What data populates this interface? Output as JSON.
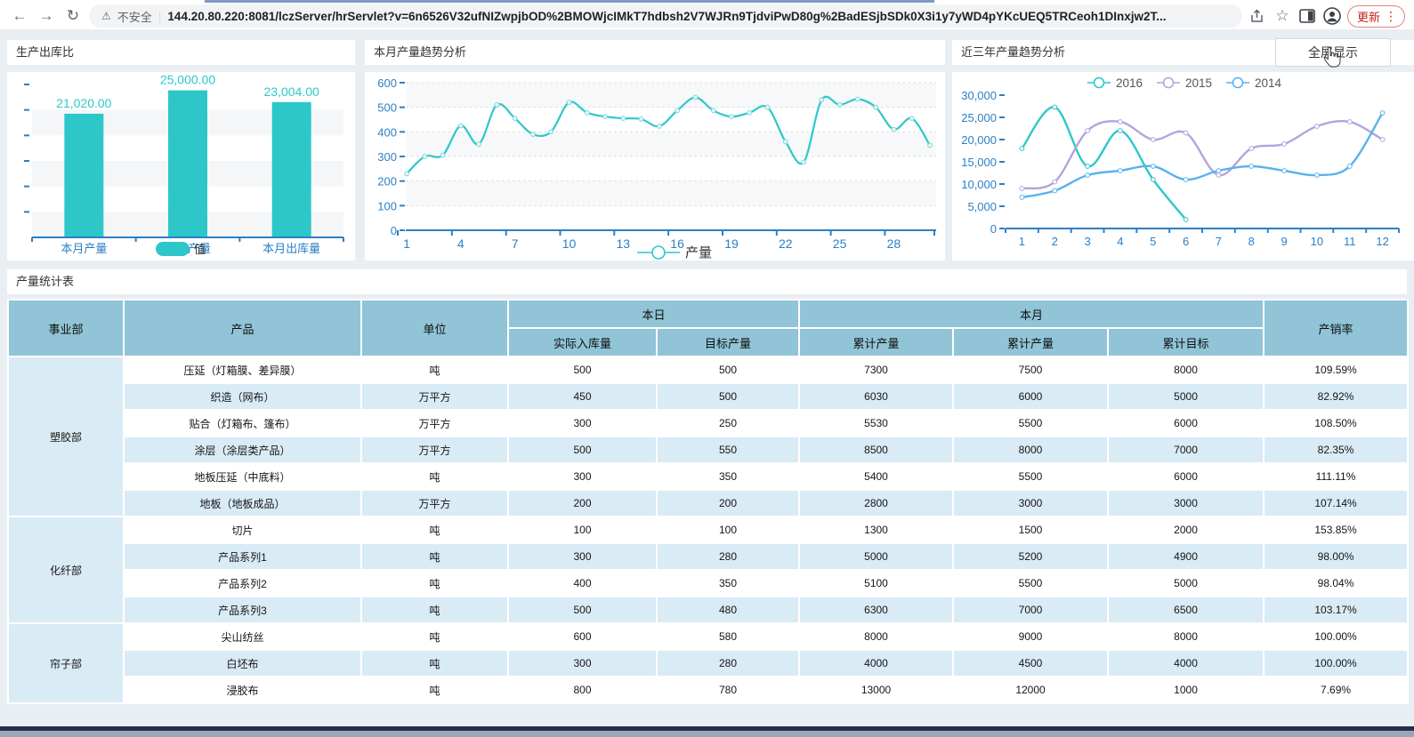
{
  "browser": {
    "security_label": "不安全",
    "url": "144.20.80.220:8081/lczServer/hrServlet?v=6n6526V32ufNIZwpjbOD%2BMOWjcIMkT7hdbsh2V7WJRn9TjdviPwD80g%2BadESjbSDk0X3i1y7yWD4pYKcUEQ5TRCeoh1DInxjw2T...",
    "update_label": "更新",
    "icons": {
      "back": "←",
      "forward": "→",
      "refresh": "↻",
      "warning": "⚠",
      "divider": "|",
      "star": "☆",
      "kebab": "⋮"
    }
  },
  "panels": {
    "bar_panel_title": "生产出库比",
    "month_panel_title": "本月产量趋势分析",
    "year_panel_title": "近三年产量趋势分析",
    "fullscreen_label": "全屏显示",
    "table_panel_title": "产量统计表"
  },
  "colors": {
    "teal": "#2ec7c9",
    "purple": "#b6a2de",
    "sky": "#5ab1ef",
    "axis_blue": "#2b80c6",
    "header_bg": "#90c4d6",
    "stripe_bg": "#d9ebf5"
  },
  "chart_data": [
    {
      "type": "bar",
      "title": "生产出库比",
      "categories": [
        "本月产量",
        "目标产量",
        "本月出库量"
      ],
      "values": [
        21020,
        25000,
        23004
      ],
      "value_labels": [
        "21,020.00",
        "25,000.00",
        "23,004.00"
      ],
      "legend": "值",
      "ylim": [
        0,
        26000
      ],
      "grid": "horizontal-bands"
    },
    {
      "type": "line",
      "title": "本月产量趋势分析",
      "x": [
        1,
        2,
        3,
        4,
        5,
        6,
        7,
        8,
        9,
        10,
        11,
        12,
        13,
        14,
        15,
        16,
        17,
        18,
        19,
        20,
        21,
        22,
        23,
        24,
        25,
        26,
        27,
        28,
        29,
        30
      ],
      "values": [
        230,
        300,
        305,
        425,
        350,
        510,
        455,
        390,
        400,
        520,
        478,
        462,
        455,
        452,
        423,
        487,
        540,
        487,
        462,
        478,
        500,
        360,
        277,
        530,
        510,
        533,
        500,
        410,
        455,
        345
      ],
      "legend": "产量",
      "ylim": [
        0,
        600
      ],
      "y_ticks": [
        0,
        100,
        200,
        300,
        400,
        500,
        600
      ],
      "x_tick_labels": [
        1,
        4,
        7,
        10,
        13,
        16,
        19,
        22,
        25,
        28
      ],
      "grid": "dashed+bands",
      "legend_position": "bottom-center"
    },
    {
      "type": "line",
      "title": "近三年产量趋势分析",
      "x": [
        1,
        2,
        3,
        4,
        5,
        6,
        7,
        8,
        9,
        10,
        11,
        12
      ],
      "series": [
        {
          "name": "2016",
          "color": "#2ec7c9",
          "values": [
            18000,
            27300,
            14000,
            22000,
            11000,
            2000
          ]
        },
        {
          "name": "2015",
          "color": "#b6a2de",
          "values": [
            9000,
            10500,
            22000,
            24000,
            20000,
            21500,
            12000,
            18000,
            19000,
            23000,
            24000,
            20000
          ]
        },
        {
          "name": "2014",
          "color": "#5ab1ef",
          "values": [
            7000,
            8500,
            12000,
            13000,
            14000,
            11000,
            13000,
            14000,
            13000,
            12000,
            14000,
            26000
          ]
        }
      ],
      "ylim": [
        0,
        30000
      ],
      "y_tick_labels": [
        "0",
        "5,000",
        "10,000",
        "15,000",
        "20,000",
        "25,000",
        "30,000"
      ],
      "legend_position": "top-center",
      "grid": "off"
    }
  ],
  "table": {
    "title": "产量统计表",
    "headers": {
      "dept": "事业部",
      "product": "产品",
      "unit": "单位",
      "today": "本日",
      "month": "本月",
      "rate": "产销率",
      "today_sub": [
        "实际入库量",
        "目标产量"
      ],
      "month_sub": [
        "累计产量",
        "累计产量",
        "累计目标"
      ]
    },
    "groups": [
      {
        "dept": "塑胶部",
        "rows": [
          [
            "压延（灯箱膜、差异膜）",
            "吨",
            "500",
            "500",
            "7300",
            "7500",
            "8000",
            "109.59%"
          ],
          [
            "织造（网布）",
            "万平方",
            "450",
            "500",
            "6030",
            "6000",
            "5000",
            "82.92%"
          ],
          [
            "贴合（灯箱布、篷布）",
            "万平方",
            "300",
            "250",
            "5530",
            "5500",
            "6000",
            "108.50%"
          ],
          [
            "涂层（涂层类产品）",
            "万平方",
            "500",
            "550",
            "8500",
            "8000",
            "7000",
            "82.35%"
          ],
          [
            "地板压延（中底料）",
            "吨",
            "300",
            "350",
            "5400",
            "5500",
            "6000",
            "111.11%"
          ],
          [
            "地板（地板成品）",
            "万平方",
            "200",
            "200",
            "2800",
            "3000",
            "3000",
            "107.14%"
          ]
        ]
      },
      {
        "dept": "化纤部",
        "rows": [
          [
            "切片",
            "吨",
            "100",
            "100",
            "1300",
            "1500",
            "2000",
            "153.85%"
          ],
          [
            "产品系列1",
            "吨",
            "300",
            "280",
            "5000",
            "5200",
            "4900",
            "98.00%"
          ],
          [
            "产品系列2",
            "吨",
            "400",
            "350",
            "5100",
            "5500",
            "5000",
            "98.04%"
          ],
          [
            "产品系列3",
            "吨",
            "500",
            "480",
            "6300",
            "7000",
            "6500",
            "103.17%"
          ]
        ]
      },
      {
        "dept": "帘子部",
        "rows": [
          [
            "尖山纺丝",
            "吨",
            "600",
            "580",
            "8000",
            "9000",
            "8000",
            "100.00%"
          ],
          [
            "白坯布",
            "吨",
            "300",
            "280",
            "4000",
            "4500",
            "4000",
            "100.00%"
          ],
          [
            "浸胶布",
            "吨",
            "800",
            "780",
            "13000",
            "12000",
            "1000",
            "7.69%"
          ]
        ]
      }
    ]
  }
}
